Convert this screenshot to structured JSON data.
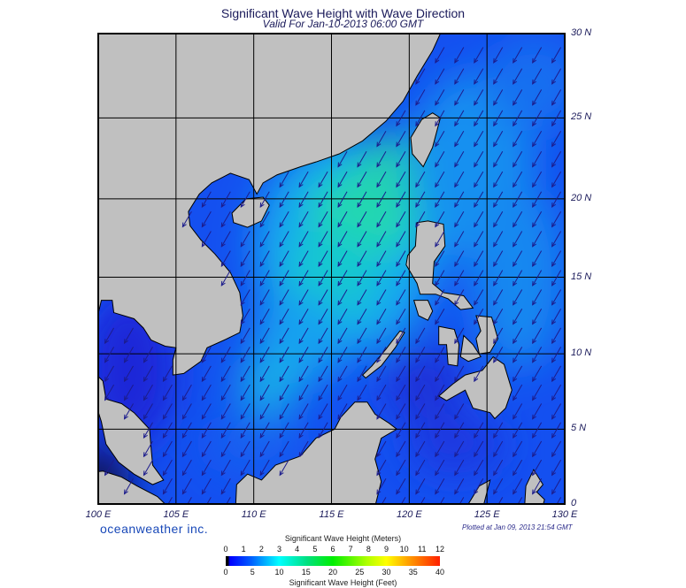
{
  "title": "Significant Wave Height with Wave Direction",
  "subtitle": "Valid For Jan-10-2013 06:00 GMT",
  "logo": "oceanweather inc.",
  "plotted": "Plotted at Jan 09, 2013 21:54 GMT",
  "map": {
    "lon_range": [
      100,
      130
    ],
    "lat_range": [
      0,
      30
    ],
    "lon_labels": [
      "100 E",
      "105 E",
      "110 E",
      "115 E",
      "120 E",
      "125 E",
      "130 E"
    ],
    "lat_labels": [
      "30 N",
      "25 N",
      "20 N",
      "15 N",
      "10 N",
      "5 N",
      "0"
    ],
    "wave_direction_toward_deg": 210,
    "colors": {
      "land": "#c0c0c0",
      "arrow": "#1c1c8c",
      "ocean_base": "#1450f0"
    }
  },
  "colorbar": {
    "title_meters": "Significant Wave Height (Meters)",
    "title_feet": "Significant Wave Height (Feet)",
    "meters": [
      "0",
      "1",
      "2",
      "3",
      "4",
      "5",
      "6",
      "7",
      "8",
      "9",
      "10",
      "11",
      "12"
    ],
    "feet": [
      "0",
      "5",
      "10",
      "15",
      "20",
      "25",
      "30",
      "35",
      "40"
    ]
  }
}
